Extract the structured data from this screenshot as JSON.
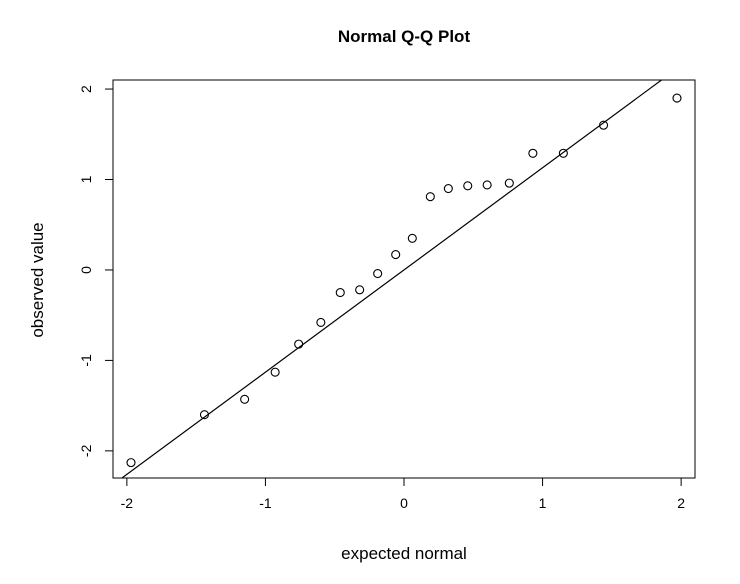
{
  "chart_data": {
    "type": "scatter",
    "title": "Normal Q-Q Plot",
    "xlabel": "expected normal",
    "ylabel": "observed value",
    "xlim": [
      -2.1,
      2.1
    ],
    "ylim": [
      -2.3,
      2.1
    ],
    "xticks": [
      -2,
      -1,
      0,
      1,
      2
    ],
    "yticks": [
      -2,
      -1,
      0,
      1,
      2
    ],
    "grid": false,
    "points": {
      "x": [
        -1.97,
        -1.44,
        -1.15,
        -0.93,
        -0.76,
        -0.6,
        -0.46,
        -0.32,
        -0.19,
        -0.06,
        0.06,
        0.19,
        0.32,
        0.46,
        0.6,
        0.76,
        0.93,
        1.15,
        1.44,
        1.97
      ],
      "y": [
        -2.13,
        -1.6,
        -1.43,
        -1.13,
        -0.82,
        -0.58,
        -0.25,
        -0.22,
        -0.04,
        0.17,
        0.35,
        0.81,
        0.9,
        0.93,
        0.94,
        0.96,
        1.29,
        1.29,
        1.6,
        1.9
      ]
    },
    "reference_line": {
      "intercept": 0.0,
      "slope": 1.13
    }
  }
}
